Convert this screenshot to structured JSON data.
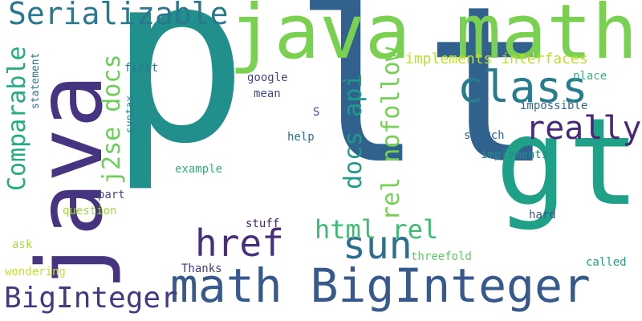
{
  "word_cloud": {
    "words": [
      {
        "text": "lt",
        "color": "#31628d"
      },
      {
        "text": "p",
        "color": "#218f8b"
      },
      {
        "text": "gt",
        "color": "#1fa187"
      },
      {
        "text": "java",
        "color": "#463480"
      },
      {
        "text": "java math",
        "color": "#7ad151"
      },
      {
        "text": "math BigInteger",
        "color": "#38598c"
      },
      {
        "text": "Serializable",
        "color": "#2a788e"
      },
      {
        "text": "class",
        "color": "#287c8e"
      },
      {
        "text": "href",
        "color": "#472f7d"
      },
      {
        "text": "sun",
        "color": "#2e6e8e"
      },
      {
        "text": "really",
        "color": "#482878"
      },
      {
        "text": "BigInteger",
        "color": "#443a83"
      },
      {
        "text": "html rel",
        "color": "#3dbc74"
      },
      {
        "text": "Comparable",
        "color": "#25ab82"
      },
      {
        "text": "j2se docs",
        "color": "#6ccd5a"
      },
      {
        "text": "docs api",
        "color": "#1e9b8a"
      },
      {
        "text": "rel nofollow",
        "color": "#75d054"
      },
      {
        "text": "implements interfaces",
        "color": "#bddf26"
      },
      {
        "text": "first",
        "color": "#2a768e"
      },
      {
        "text": "google",
        "color": "#424186"
      },
      {
        "text": "mean",
        "color": "#3e4989"
      },
      {
        "text": "place",
        "color": "#35b779"
      },
      {
        "text": "impossible",
        "color": "#32658e"
      },
      {
        "text": "S",
        "color": "#3b528b"
      },
      {
        "text": "help",
        "color": "#2f6c8e"
      },
      {
        "text": "search",
        "color": "#33628d"
      },
      {
        "text": "implements",
        "color": "#23898e"
      },
      {
        "text": "example",
        "color": "#2db27d"
      },
      {
        "text": "part",
        "color": "#3f4788"
      },
      {
        "text": "question",
        "color": "#a2da37"
      },
      {
        "text": "stuff",
        "color": "#481b6d"
      },
      {
        "text": "hard",
        "color": "#39568c"
      },
      {
        "text": "ask",
        "color": "#a8db34"
      },
      {
        "text": "threefold",
        "color": "#5ec962"
      },
      {
        "text": "wondering",
        "color": "#c8e020"
      },
      {
        "text": "Thanks",
        "color": "#453882"
      },
      {
        "text": "called",
        "color": "#1f9e89"
      },
      {
        "text": "statement",
        "color": "#2c728e"
      },
      {
        "text": "syntax",
        "color": "#277f8e"
      }
    ]
  }
}
